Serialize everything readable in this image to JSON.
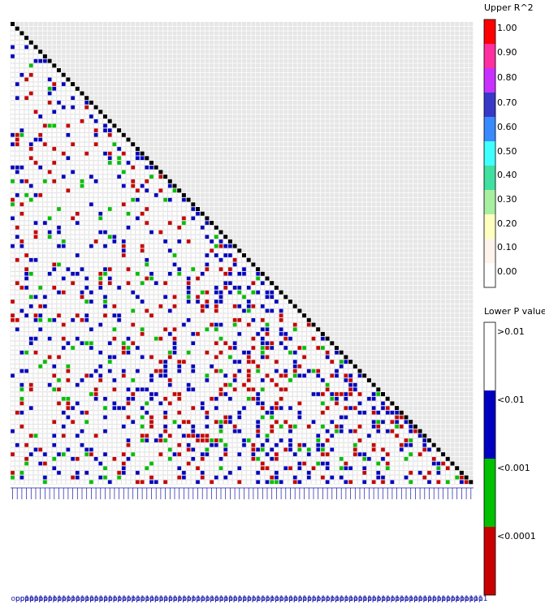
{
  "chart_data": {
    "type": "heatmap",
    "marker_count": 100,
    "marker_label_text": "opp1",
    "upper_legend": {
      "title": "Upper R^2",
      "ticks": [
        "1.00",
        "0.90",
        "0.80",
        "0.70",
        "0.60",
        "0.50",
        "0.40",
        "0.30",
        "0.20",
        "0.10",
        "0.00"
      ],
      "colors": [
        "#ff0000",
        "#ff2fa0",
        "#c830ff",
        "#3838c8",
        "#3a8aff",
        "#40ffff",
        "#40e0a0",
        "#a8f0a0",
        "#ffffc0",
        "#fff4ec",
        "#ffffff"
      ]
    },
    "lower_legend": {
      "title": "Lower P value",
      "labels": [
        ">0.01",
        "<0.01",
        "<0.001",
        "<0.0001"
      ],
      "colors": [
        "#ffffff",
        "#0000c0",
        "#00c000",
        "#c80000"
      ]
    },
    "diagonal_color": "#000000",
    "upper_cell_color": "#e6e6e6",
    "lower_density": {
      "p_lt_0_01": 0.14,
      "p_lt_0_001": 0.05,
      "p_lt_0_0001": 0.1
    }
  }
}
